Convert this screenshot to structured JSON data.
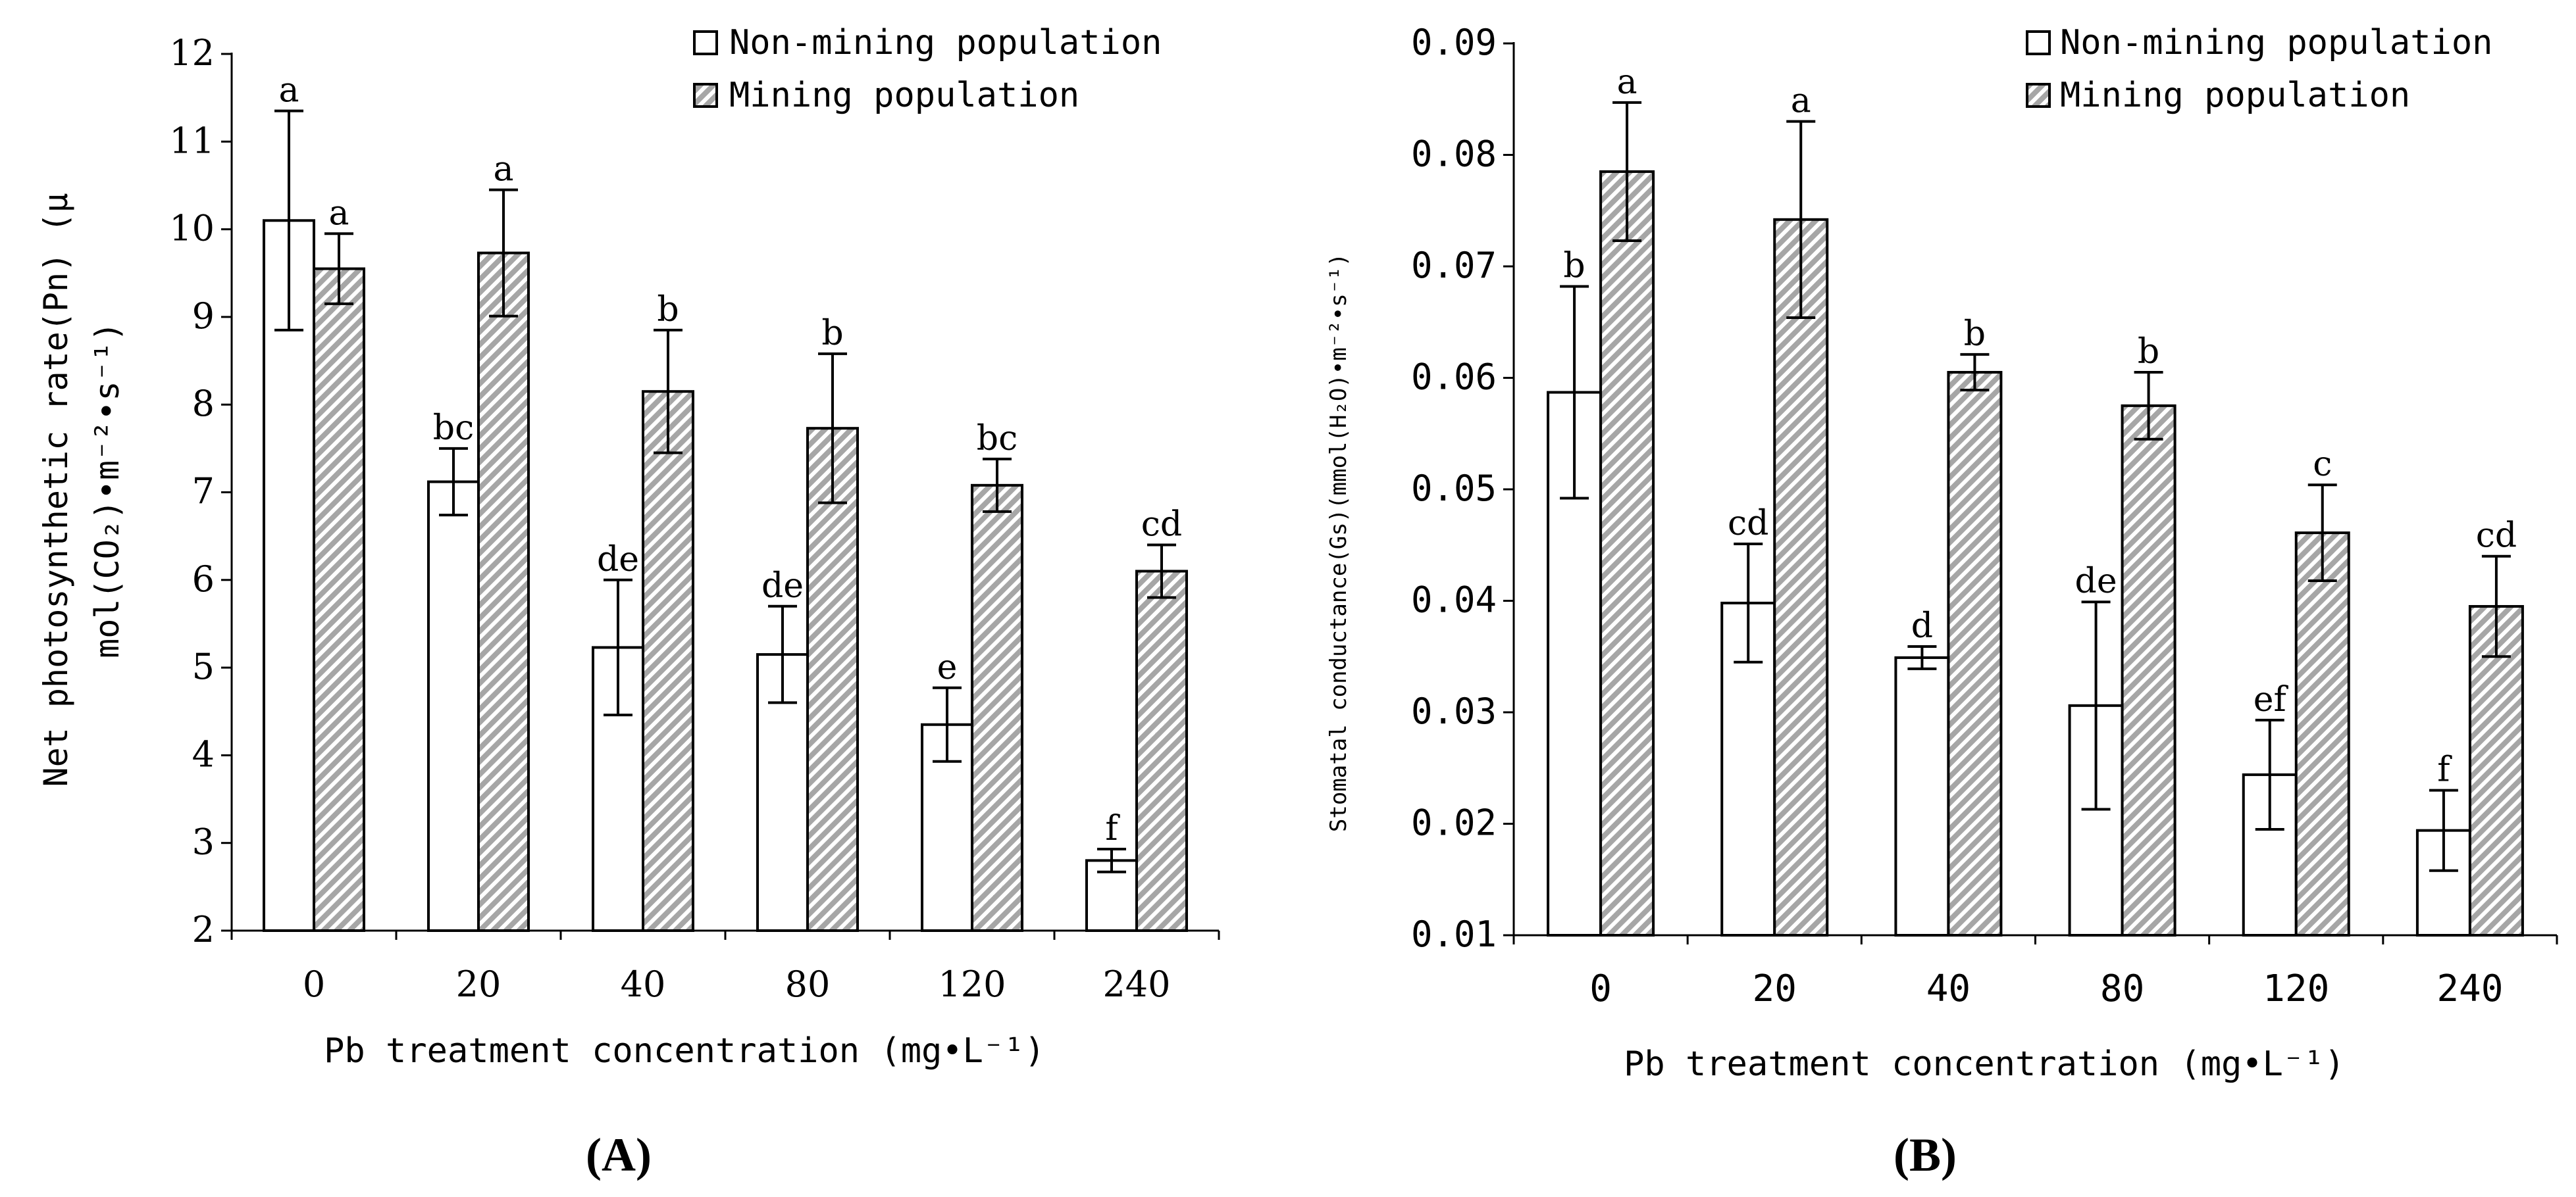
{
  "chart_data": [
    {
      "type": "bar",
      "panel_label": "(A)",
      "ylabel_line1": "Net photosynthetic rate(Pn) (μ",
      "ylabel_line2": "mol(CO₂)•m⁻²•s⁻¹)",
      "xlabel": "Pb treatment concentration (mg•L⁻¹)",
      "categories": [
        "0",
        "20",
        "40",
        "80",
        "120",
        "240"
      ],
      "ylim": [
        2,
        12
      ],
      "yticks": [
        "2",
        "3",
        "4",
        "5",
        "6",
        "7",
        "8",
        "9",
        "10",
        "11",
        "12"
      ],
      "series": [
        {
          "name": "Non-mining population",
          "values": [
            10.1,
            7.12,
            5.23,
            5.15,
            4.35,
            2.8
          ],
          "errors": [
            1.25,
            0.38,
            0.77,
            0.55,
            0.42,
            0.13
          ],
          "letters": [
            "a",
            "bc",
            "de",
            "de",
            "e",
            "f"
          ]
        },
        {
          "name": "Mining population",
          "values": [
            9.55,
            9.73,
            8.15,
            7.73,
            7.08,
            6.1
          ],
          "errors": [
            0.4,
            0.72,
            0.7,
            0.85,
            0.3,
            0.3
          ],
          "letters": [
            "a",
            "a",
            "b",
            "b",
            "bc",
            "cd"
          ]
        }
      ]
    },
    {
      "type": "bar",
      "panel_label": "(B)",
      "ylabel_line1": "Stomatal conductance(Gs)(mmol(H₂O)•m⁻²•s⁻¹)",
      "xlabel": "Pb treatment concentration (mg•L⁻¹)",
      "categories": [
        "0",
        "20",
        "40",
        "80",
        "120",
        "240"
      ],
      "ylim": [
        0.01,
        0.09
      ],
      "yticks": [
        "0.01",
        "0.02",
        "0.03",
        "0.04",
        "0.05",
        "0.06",
        "0.07",
        "0.08",
        "0.09"
      ],
      "series": [
        {
          "name": "Non-mining population",
          "values": [
            0.0587,
            0.0398,
            0.0349,
            0.0306,
            0.0244,
            0.0194
          ],
          "errors": [
            0.0095,
            0.0053,
            0.001,
            0.0093,
            0.0049,
            0.0036
          ],
          "letters": [
            "b",
            "cd",
            "d",
            "de",
            "ef",
            "f"
          ]
        },
        {
          "name": "Mining population",
          "values": [
            0.0785,
            0.0742,
            0.0605,
            0.0575,
            0.0461,
            0.0395
          ],
          "errors": [
            0.0062,
            0.0088,
            0.0016,
            0.003,
            0.0043,
            0.0045
          ],
          "letters": [
            "a",
            "a",
            "b",
            "b",
            "c",
            "cd"
          ]
        }
      ]
    }
  ]
}
